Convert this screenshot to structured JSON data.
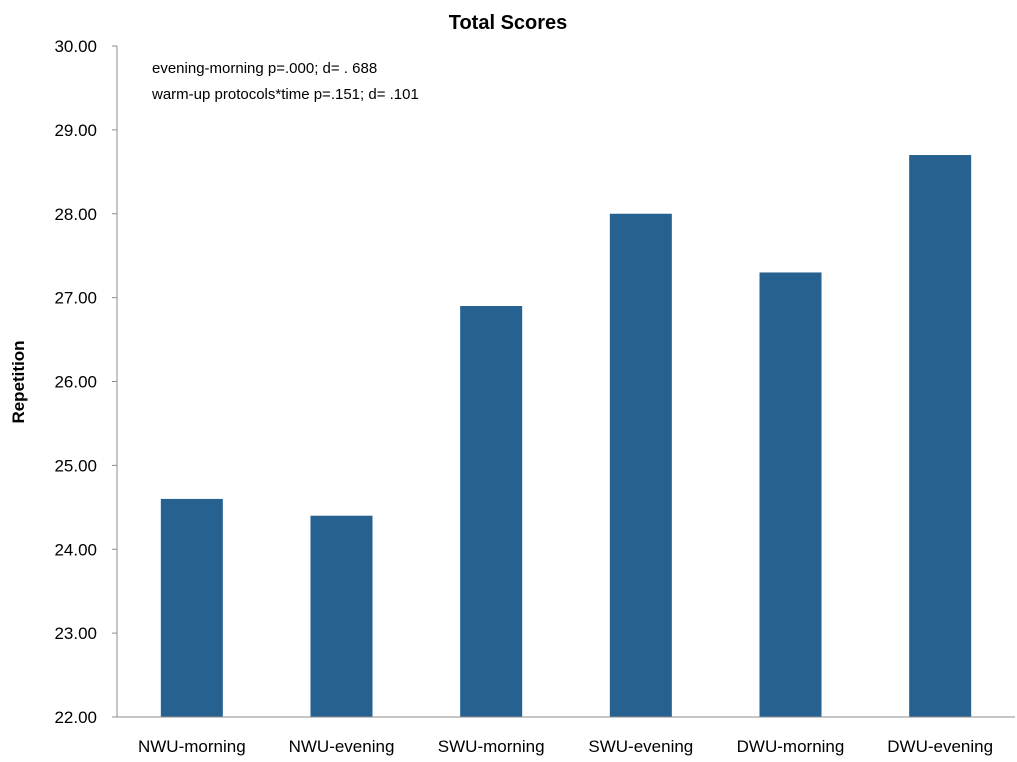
{
  "chart_data": {
    "type": "bar",
    "title": "Total Scores",
    "xlabel": "",
    "ylabel": "Repetition",
    "categories": [
      "NWU-morning",
      "NWU-evening",
      "SWU-morning",
      "SWU-evening",
      "DWU-morning",
      "DWU-evening"
    ],
    "values": [
      24.6,
      24.4,
      26.9,
      28.0,
      27.3,
      28.7
    ],
    "ylim": [
      22,
      30
    ],
    "yticks": [
      "22.00",
      "23.00",
      "24.00",
      "25.00",
      "26.00",
      "27.00",
      "28.00",
      "29.00",
      "30.00"
    ],
    "annotations": [
      "evening-morning p=.000; d= . 688",
      "warm-up protocols*time p=.151; d=  .101"
    ],
    "bar_color": "#26618f",
    "grid": false,
    "legend": "none"
  }
}
